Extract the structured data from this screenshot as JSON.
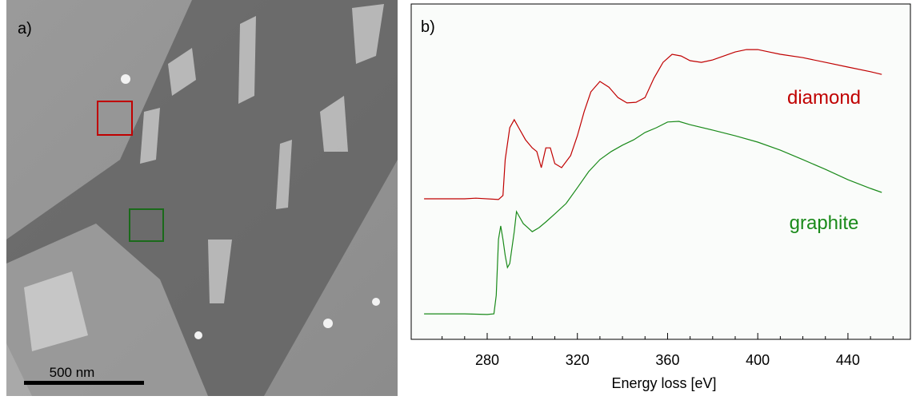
{
  "micrograph": {
    "panel_label": "a)",
    "scale_bar_label": "500 nm"
  },
  "chart_data": {
    "type": "line",
    "panel_label": "b)",
    "x_label": "Energy loss [eV]",
    "xlim": [
      246.3,
      467.7
    ],
    "xticks": [
      280,
      320,
      360,
      400,
      440
    ],
    "xminorticks": [
      260,
      270,
      290,
      300,
      310,
      330,
      340,
      350,
      370,
      380,
      390,
      410,
      420,
      430,
      450,
      460
    ],
    "ylim": [
      0,
      100
    ],
    "series": [
      {
        "name": "diamond",
        "color": "#c00000",
        "x": [
          252,
          270,
          275,
          285,
          287,
          288,
          290,
          292,
          294,
          297,
          300,
          302,
          304,
          306,
          308,
          310,
          313,
          317,
          320,
          323,
          326,
          330,
          334,
          338,
          342,
          346,
          350,
          354,
          358,
          362,
          366,
          370,
          375,
          380,
          385,
          390,
          395,
          400,
          405,
          410,
          420,
          430,
          440,
          450,
          455
        ],
        "values": [
          41.9,
          41.9,
          42.1,
          41.7,
          42.9,
          53.6,
          63.1,
          65.5,
          63.1,
          59.5,
          57.1,
          56.0,
          51.2,
          57.1,
          57.1,
          52.4,
          51.2,
          54.8,
          60.7,
          67.9,
          73.8,
          76.9,
          75.2,
          72.1,
          70.5,
          70.7,
          72.1,
          77.9,
          82.6,
          85.0,
          84.5,
          83.1,
          82.6,
          83.3,
          84.5,
          85.7,
          86.4,
          86.4,
          85.7,
          85.0,
          84.0,
          82.6,
          81.2,
          79.8,
          79.0
        ]
      },
      {
        "name": "graphite",
        "color": "#1a8a1a",
        "x": [
          252,
          270,
          280,
          283,
          284,
          285,
          286,
          287,
          288,
          289,
          290,
          292,
          293,
          294,
          296,
          298,
          300,
          303,
          306,
          310,
          315,
          320,
          325,
          330,
          335,
          340,
          345,
          350,
          355,
          360,
          365,
          370,
          380,
          390,
          400,
          410,
          420,
          430,
          440,
          450,
          455
        ],
        "values": [
          7.6,
          7.6,
          7.4,
          7.6,
          13.1,
          29.8,
          33.8,
          29.8,
          25.0,
          21.4,
          22.6,
          32.1,
          38.1,
          36.9,
          34.5,
          33.3,
          32.1,
          33.3,
          35.0,
          37.4,
          40.5,
          45.2,
          50.0,
          53.6,
          56.0,
          57.9,
          59.5,
          61.7,
          63.1,
          64.8,
          65.0,
          64.0,
          62.4,
          60.7,
          58.8,
          56.4,
          53.6,
          50.7,
          47.6,
          45.0,
          43.8
        ]
      }
    ]
  }
}
